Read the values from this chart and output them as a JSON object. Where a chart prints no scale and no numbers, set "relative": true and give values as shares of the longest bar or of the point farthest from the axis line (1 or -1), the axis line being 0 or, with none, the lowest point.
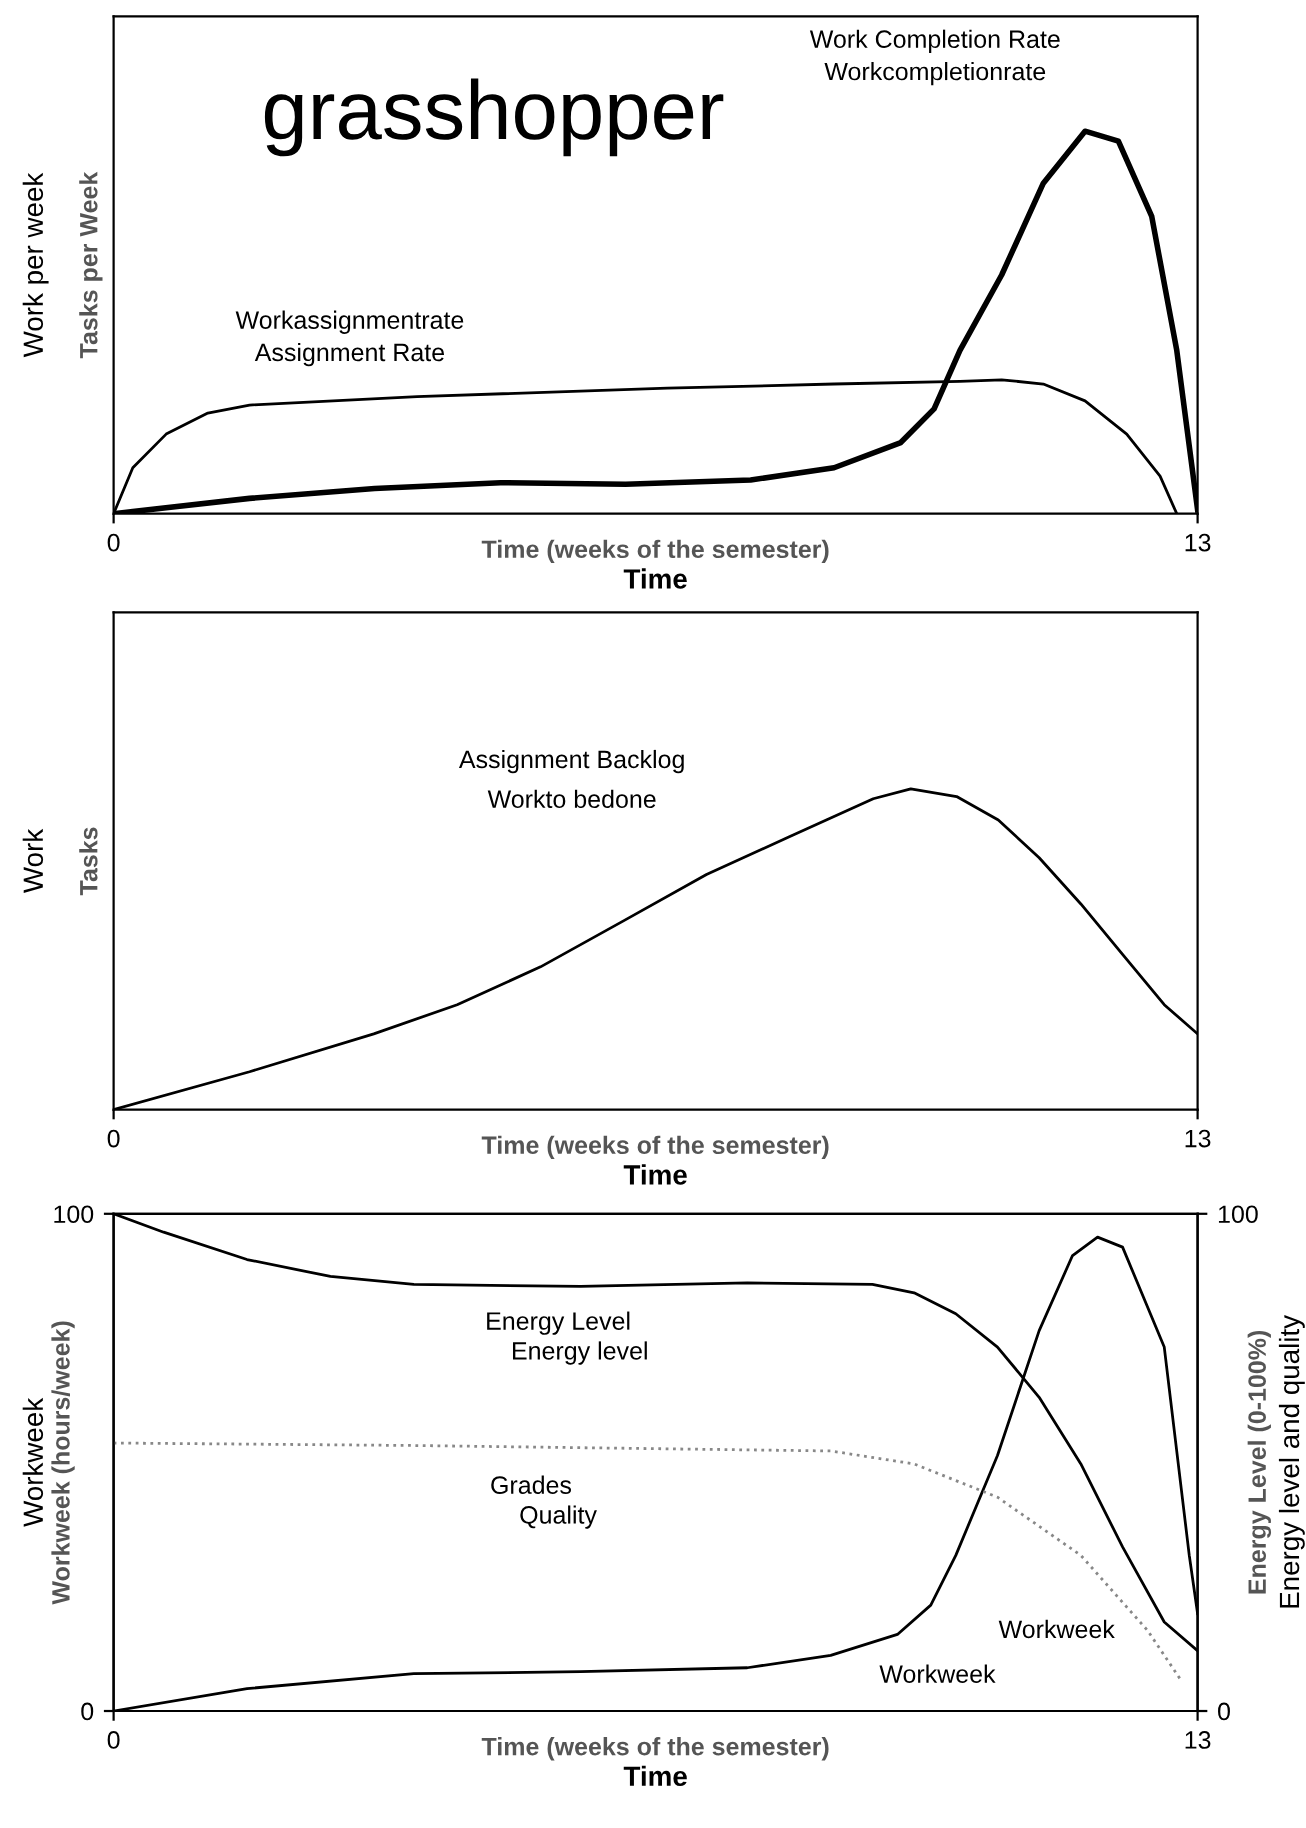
{
  "chart_data": [
    {
      "type": "line",
      "title": "grasshopper",
      "xlabel": "Time (weeks of the semester)",
      "ylabel": "Tasks per Week",
      "relative": true,
      "xlim": [
        0,
        13
      ],
      "xticks": [
        0,
        13
      ],
      "series": [
        {
          "color": "#000000",
          "x": [
            0,
            0.23,
            0.63,
            1.13,
            1.63,
            3.64,
            6.64,
            8.64,
            10.15,
            10.65,
            11.15,
            11.65,
            12.15,
            12.55,
            12.75
          ],
          "values": [
            0,
            0.12,
            0.208,
            0.263,
            0.284,
            0.306,
            0.328,
            0.339,
            0.346,
            0.35,
            0.339,
            0.295,
            0.208,
            0.098,
            0
          ]
        },
        {
          "color": "#000000",
          "x": [
            0,
            1.63,
            3.13,
            4.64,
            6.14,
            7.64,
            8.64,
            9.44,
            9.84,
            10.15,
            10.65,
            11.15,
            11.65,
            12.05,
            12.45,
            12.75,
            13
          ],
          "values": [
            0,
            0.04,
            0.066,
            0.081,
            0.077,
            0.088,
            0.12,
            0.186,
            0.274,
            0.427,
            0.624,
            0.864,
            1,
            0.974,
            0.777,
            0.427,
            0.01
          ]
        }
      ],
      "annotations": [
        "Work Completion Rate",
        "Workcompletionrate",
        "Assignment Rate",
        "Workassignmentrate",
        "Time",
        "Work per week"
      ]
    },
    {
      "type": "line",
      "xlabel": "Time (weeks of the semester)",
      "ylabel": "Tasks",
      "relative": true,
      "xlim": [
        0,
        13
      ],
      "xticks": [
        0,
        13
      ],
      "series": [
        {
          "color": "#000000",
          "x": [
            0,
            1.63,
            3.12,
            4.12,
            5.12,
            6.12,
            7.11,
            8.11,
            9.11,
            9.56,
            10.11,
            10.61,
            11.1,
            11.6,
            12.1,
            12.6,
            13
          ],
          "values": [
            0,
            0.118,
            0.236,
            0.327,
            0.445,
            0.589,
            0.733,
            0.851,
            0.969,
            1,
            0.976,
            0.903,
            0.785,
            0.641,
            0.484,
            0.327,
            0.236
          ]
        }
      ],
      "annotations": [
        "Assignment Backlog",
        "Workto bedone",
        "Time",
        "Work"
      ]
    },
    {
      "type": "line",
      "xlabel": "Time (weeks of the semester)",
      "ylabel": "Workweek (hours/week)",
      "y2label": "Energy Level (0-100%)",
      "xlim": [
        0,
        13
      ],
      "xticks": [
        0,
        13
      ],
      "ylim": [
        0,
        100
      ],
      "yticks": [
        0,
        100
      ],
      "y2lim": [
        0,
        100
      ],
      "y2ticks": [
        0,
        100
      ],
      "series": [
        {
          "color": "#000000",
          "axis": "y2",
          "x": [
            0,
            0.6,
            1.6,
            2.6,
            3.6,
            5.6,
            7.6,
            9.1,
            9.6,
            10.1,
            10.6,
            11.1,
            11.6,
            12.1,
            12.6,
            13
          ],
          "values": [
            100,
            96.3,
            90.8,
            87.4,
            85.8,
            85.4,
            86.1,
            85.8,
            84.1,
            79.9,
            73.2,
            63.1,
            49.7,
            33,
            17.9,
            12.1
          ]
        },
        {
          "color": "#888888",
          "axis": "y2",
          "line_style": "dotted",
          "x": [
            0,
            3.6,
            8.6,
            9.6,
            10.6,
            11.6,
            12.4,
            12.8
          ],
          "values": [
            53.9,
            53.4,
            52.3,
            49.7,
            43,
            31.3,
            16.2,
            6.2
          ]
        },
        {
          "color": "#000000",
          "x": [
            0,
            1.6,
            3.6,
            5.6,
            7.6,
            8.6,
            9.4,
            9.8,
            10.1,
            10.6,
            11.1,
            11.5,
            11.8,
            12.1,
            12.6,
            12.9,
            13
          ],
          "values": [
            0,
            4.5,
            7.5,
            7.9,
            8.7,
            11.2,
            15.4,
            21.3,
            31.3,
            51.4,
            76.5,
            91.6,
            95.3,
            93.3,
            73.2,
            31.3,
            19.6
          ]
        }
      ],
      "annotations": [
        "Energy Level",
        "Energy level",
        "Grades",
        "Quality",
        "Workweek",
        "Workweek",
        "Time",
        "Workweek",
        "Energy level and quality"
      ]
    }
  ]
}
